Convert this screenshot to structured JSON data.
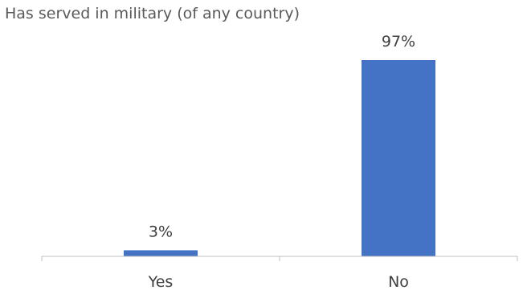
{
  "chart_data": {
    "type": "bar",
    "title": "Has served in military (of any country)",
    "categories": [
      "Yes",
      "No"
    ],
    "values": [
      3,
      97
    ],
    "value_labels": [
      "3%",
      "97%"
    ],
    "unit": "%",
    "ylim": [
      0,
      100
    ],
    "grid": false,
    "legend": "none",
    "colors": {
      "bar": "#4472C4",
      "axis": "#BFBFBF",
      "text": "#404040",
      "title": "#595959"
    }
  }
}
